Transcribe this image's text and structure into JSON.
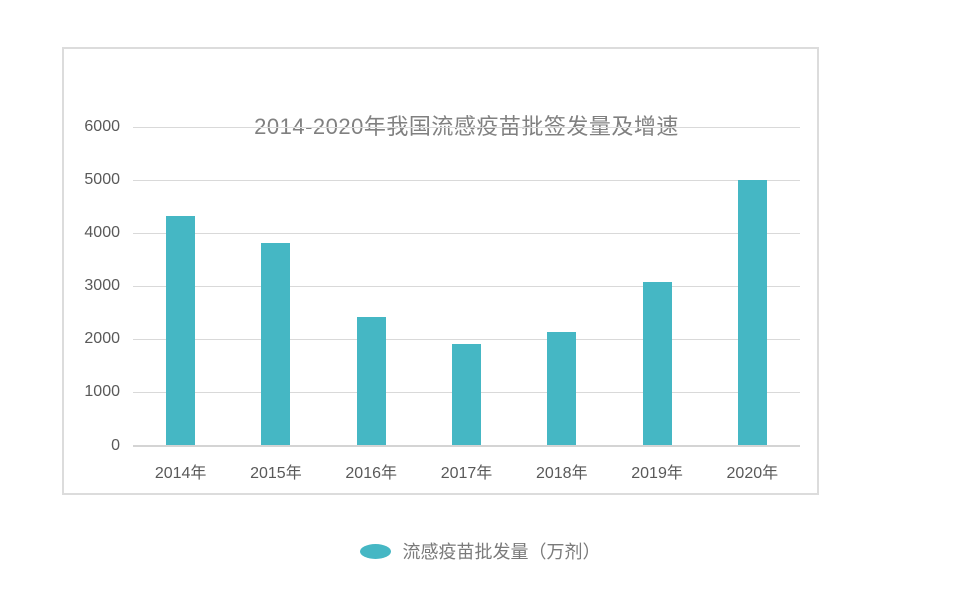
{
  "title": {
    "text": "2014-2020年我国流感疫苗批签发量及增速"
  },
  "legend": {
    "label": "流感疫苗批发量（万剂）"
  },
  "colors": {
    "bar": "#45b7c4",
    "grid": "#d9d9d9",
    "axis_text": "#595959",
    "title_text": "#808080",
    "legend_text": "#7a7a7a",
    "card_border": "#dcdcdc"
  },
  "chart_data": {
    "type": "bar",
    "title": "2014-2020年我国流感疫苗批签发量及增速",
    "categories": [
      "2014年",
      "2015年",
      "2016年",
      "2017年",
      "2018年",
      "2019年",
      "2020年"
    ],
    "values": [
      4330,
      3820,
      2420,
      1910,
      2130,
      3080,
      5000
    ],
    "series_name": "流感疫苗批发量（万剂）",
    "xlabel": "",
    "ylabel": "",
    "ylim": [
      0,
      6000
    ],
    "ytick_step": 1000,
    "yticks": [
      0,
      1000,
      2000,
      3000,
      4000,
      5000,
      6000
    ],
    "grid": true,
    "legend_entries": [
      "流感疫苗批发量（万剂）"
    ],
    "legend_position": "bottom",
    "bar_color": "#45b7c4"
  }
}
